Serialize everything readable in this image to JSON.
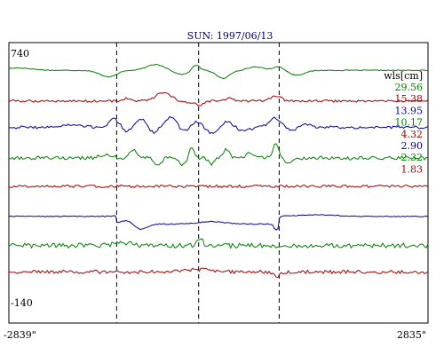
{
  "chart_data": {
    "type": "line",
    "title": "SUN: 1997/06/13",
    "xlabel": "",
    "ylabel": "",
    "x_range": [
      -2839,
      2835
    ],
    "x_tick_labels": [
      "-2839\"",
      "2835\""
    ],
    "y_top_label": "740",
    "y_bottom_label": "-140",
    "legend_title": "wls[cm]",
    "legend_placement": "right",
    "grid": false,
    "vertical_markers": [
      -1380,
      -270,
      820
    ],
    "palette": {
      "green": "#008000",
      "red": "#990000",
      "blue": "#000099"
    },
    "series": [
      {
        "name": "29.56",
        "color": "#008000",
        "offset": 685
      },
      {
        "name": "15.38",
        "color": "#990000",
        "offset": 580
      },
      {
        "name": "13.95",
        "color": "#000099",
        "offset": 490
      },
      {
        "name": "10.17",
        "color": "#008000",
        "offset": 385
      },
      {
        "name": "4.32",
        "color": "#990000",
        "offset": 288
      },
      {
        "name": "2.90",
        "color": "#000099",
        "offset": 185
      },
      {
        "name": "2.32",
        "color": "#008000",
        "offset": 85
      },
      {
        "name": "1.83",
        "color": "#990000",
        "offset": -5
      }
    ]
  }
}
